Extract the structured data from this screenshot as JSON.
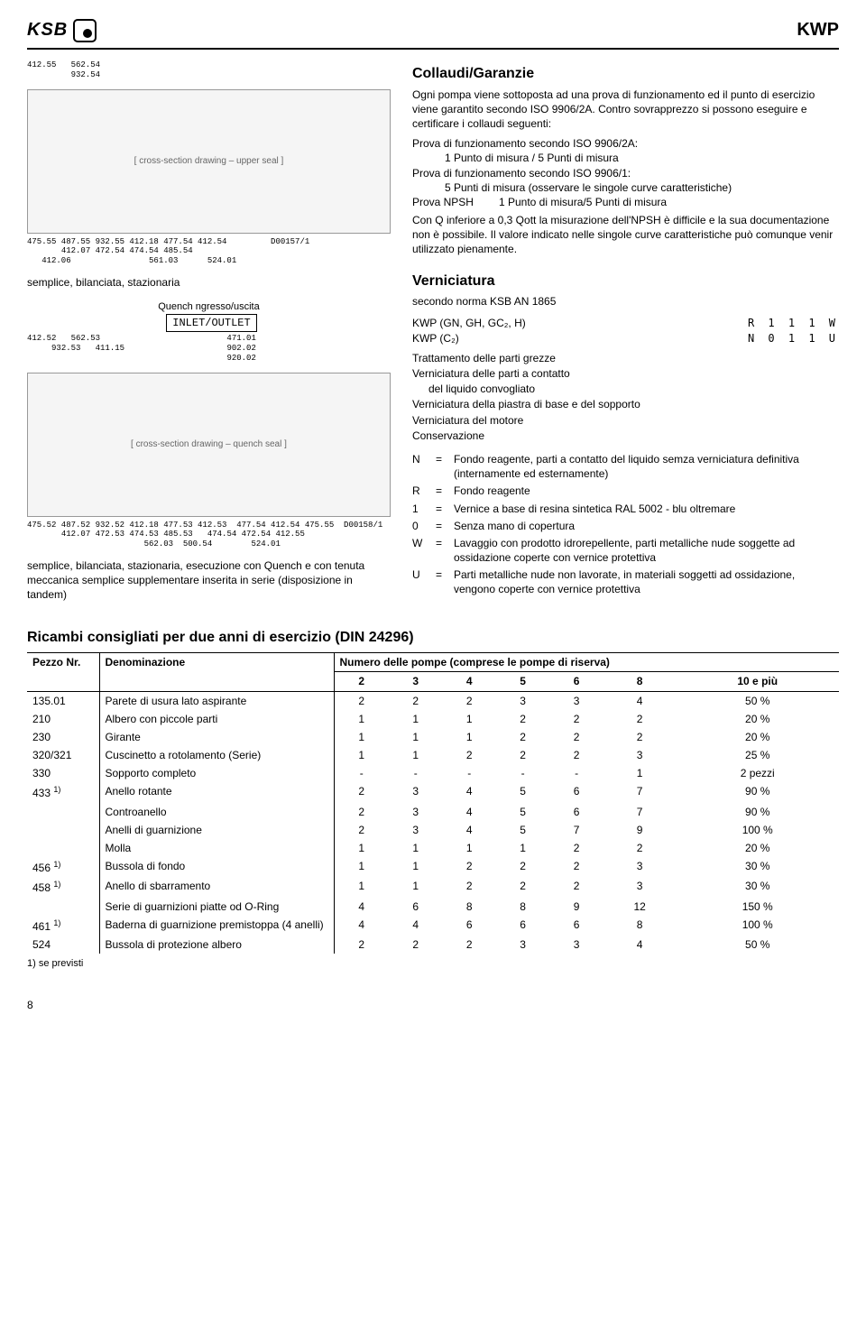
{
  "header": {
    "logo_text": "KSB",
    "doc_id": "KWP"
  },
  "fig1": {
    "placeholder": "[ cross-section drawing – upper seal ]",
    "callouts_top": "412.55   562.54\n         932.54",
    "callouts_bottom": "475.55 487.55 932.55 412.18 477.54 412.54         D00157/1\n       412.07 472.54 474.54 485.54\n   412.06                561.03      524.01"
  },
  "caption1": "semplice, bilanciata, stazionaria",
  "quench_label": "Quench ngresso/uscita",
  "inlet_label": "INLET/OUTLET",
  "fig2": {
    "placeholder": "[ cross-section drawing – quench seal ]",
    "callouts_top": "412.52   562.53                          471.01\n     932.53   411.15                     902.02\n                                         920.02",
    "callouts_bottom": "475.52 487.52 932.52 412.18 477.53 412.53  477.54 412.54 475.55  D00158/1\n       412.07 472.53 474.53 485.53   474.54 472.54 412.55\n                        562.03  500.54        524.01"
  },
  "caption2": "semplice, bilanciata, stazionaria, esecuzione con Quench e con tenuta meccanica semplice supplementare inserita in serie (disposizione in tandem)",
  "collaudi": {
    "title": "Collaudi/Garanzie",
    "p1": "Ogni pompa viene sottoposta ad una prova di funzionamento ed il punto di esercizio viene garantito secondo ISO 9906/2A. Contro sovrapprezzo si possono eseguire e certificare i collaudi seguenti:",
    "l1": "Prova di funzionamento secondo ISO 9906/2A:",
    "l1a": "1 Punto di misura / 5 Punti di misura",
    "l2": "Prova di funzionamento secondo ISO 9906/1:",
    "l2a": "5 Punti di misura (osservare le singole curve caratteristiche)",
    "l3a": "Prova NPSH",
    "l3b": "1 Punto di misura/5 Punti di misura",
    "p2": "Con Q inferiore a 0,3 Qott la misurazione dell'NPSH è difficile e la sua documentazione non è possibile. Il valore indicato nelle singole curve caratteristiche può comunque venir utilizzato pienamente."
  },
  "verniciatura": {
    "title": "Verniciatura",
    "sub": "secondo norma KSB AN 1865",
    "row1_l": "KWP (GN, GH, GC₂, H)",
    "row1_r": "R 1 1 1 W",
    "row2_l": "KWP (C₂)",
    "row2_r": "N 0 1 1 U",
    "t1": "Trattamento delle parti grezze",
    "t2": "Verniciatura delle parti a contatto",
    "t2b": "del liquido convogliato",
    "t3": "Verniciatura della piastra di base e del sopporto",
    "t4": "Verniciatura del motore",
    "t5": "Conservazione",
    "defs": [
      {
        "k": "N",
        "v": "Fondo reagente, parti a contatto del liquido semza verniciatura definitiva (internamente ed esternamente)"
      },
      {
        "k": "R",
        "v": "Fondo reagente"
      },
      {
        "k": "1",
        "v": "Vernice a base di resina sintetica RAL 5002 - blu oltremare"
      },
      {
        "k": "0",
        "v": "Senza mano di copertura"
      },
      {
        "k": "W",
        "v": "Lavaggio con prodotto idrorepellente, parti metalliche nude soggette ad ossidazione coperte con vernice protettiva"
      },
      {
        "k": "U",
        "v": "Parti metalliche nude non lavorate, in materiali soggetti ad ossidazione, vengono coperte con vernice protettiva"
      }
    ]
  },
  "spares": {
    "title": "Ricambi consigliati per due anni di esercizio (DIN 24296)",
    "col1": "Pezzo Nr.",
    "col2": "Denominazione",
    "col_group": "Numero delle pompe (comprese le pompe di riserva)",
    "qty_heads": [
      "2",
      "3",
      "4",
      "5",
      "6",
      "8",
      "10 e più"
    ],
    "rows": [
      {
        "nr": "135.01",
        "den": "Parete di usura lato aspirante",
        "q": [
          "2",
          "2",
          "2",
          "3",
          "3",
          "4",
          "50 %"
        ]
      },
      {
        "nr": "210",
        "den": "Albero con piccole parti",
        "q": [
          "1",
          "1",
          "1",
          "2",
          "2",
          "2",
          "20 %"
        ]
      },
      {
        "nr": "230",
        "den": "Girante",
        "q": [
          "1",
          "1",
          "1",
          "2",
          "2",
          "2",
          "20 %"
        ]
      },
      {
        "nr": "320/321",
        "den": "Cuscinetto a rotolamento (Serie)",
        "q": [
          "1",
          "1",
          "2",
          "2",
          "2",
          "3",
          "25 %"
        ]
      },
      {
        "nr": "330",
        "den": "Sopporto completo",
        "q": [
          "-",
          "-",
          "-",
          "-",
          "-",
          "1",
          "2 pezzi"
        ]
      },
      {
        "nr": "433 ",
        "sup": "1)",
        "den": "Anello rotante",
        "q": [
          "2",
          "3",
          "4",
          "5",
          "6",
          "7",
          "90 %"
        ]
      },
      {
        "nr": "",
        "den": "Controanello",
        "q": [
          "2",
          "3",
          "4",
          "5",
          "6",
          "7",
          "90 %"
        ]
      },
      {
        "nr": "",
        "den": "Anelli di guarnizione",
        "q": [
          "2",
          "3",
          "4",
          "5",
          "7",
          "9",
          "100 %"
        ]
      },
      {
        "nr": "",
        "den": "Molla",
        "q": [
          "1",
          "1",
          "1",
          "1",
          "2",
          "2",
          "20 %"
        ]
      },
      {
        "nr": "456 ",
        "sup": "1)",
        "den": "Bussola di fondo",
        "q": [
          "1",
          "1",
          "2",
          "2",
          "2",
          "3",
          "30 %"
        ]
      },
      {
        "nr": "458 ",
        "sup": "1)",
        "den": "Anello di sbarramento",
        "q": [
          "1",
          "1",
          "2",
          "2",
          "2",
          "3",
          "30 %"
        ]
      },
      {
        "nr": "",
        "den": "Serie di guarnizioni piatte od O-Ring",
        "q": [
          "4",
          "6",
          "8",
          "8",
          "9",
          "12",
          "150 %"
        ]
      },
      {
        "nr": "461 ",
        "sup": "1)",
        "den": "Baderna di guarnizione premistoppa (4 anelli)",
        "q": [
          "4",
          "4",
          "6",
          "6",
          "6",
          "8",
          "100 %"
        ]
      },
      {
        "nr": "524",
        "den": "Bussola di protezione albero",
        "q": [
          "2",
          "2",
          "2",
          "3",
          "3",
          "4",
          "50 %"
        ]
      }
    ],
    "footnote": "1) se previsti"
  },
  "page_number": "8"
}
